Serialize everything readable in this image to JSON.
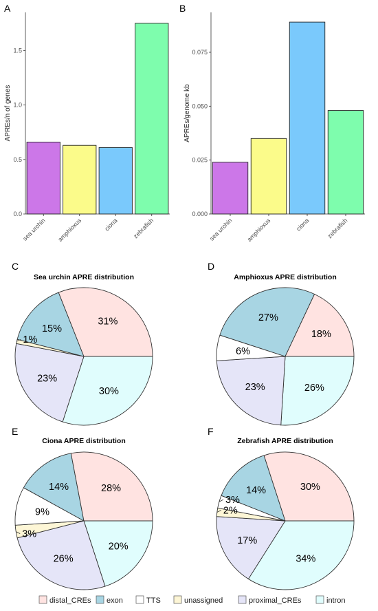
{
  "colors": {
    "distal_CREs": "#ffe3e1",
    "exon": "#a8d5e3",
    "TTS": "#ffffff",
    "unassigned": "#fdf6d6",
    "proximal_CREs": "#e5e5f8",
    "intron": "#e0fdfd",
    "sea urchin": "#cc77e8",
    "amphioxus": "#fbfb8a",
    "ciona": "#7ac9fc",
    "zebrafish": "#7efdad"
  },
  "chart_data": [
    {
      "panel": "A",
      "type": "bar",
      "title": "",
      "xlabel": "",
      "ylabel": "APREs/n of genes",
      "categories": [
        "sea urchin",
        "amphioxus",
        "ciona",
        "zebrafish"
      ],
      "values": [
        0.66,
        0.63,
        0.61,
        1.75
      ],
      "ylim": [
        0,
        1.85
      ],
      "yticks": [
        0.0,
        0.5,
        1.0,
        1.5
      ],
      "ytick_labels": [
        "0.0",
        "0.5",
        "1.0",
        "1.5"
      ],
      "grid": false
    },
    {
      "panel": "B",
      "type": "bar",
      "title": "",
      "xlabel": "",
      "ylabel": "APREs/genome kb",
      "categories": [
        "sea urchin",
        "amphioxus",
        "ciona",
        "zebrafish"
      ],
      "values": [
        0.024,
        0.035,
        0.089,
        0.048
      ],
      "ylim": [
        0,
        0.0935
      ],
      "yticks": [
        0.0,
        0.025,
        0.05,
        0.075
      ],
      "ytick_labels": [
        "0.000",
        "0.025",
        "0.050",
        "0.075"
      ],
      "grid": false
    },
    {
      "panel": "C",
      "type": "pie",
      "title": "Sea urchin APRE distribution",
      "slices": [
        {
          "category": "distal_CREs",
          "value": 31,
          "label": "31%"
        },
        {
          "category": "exon",
          "value": 15,
          "label": "15%"
        },
        {
          "category": "TTS",
          "value": 0,
          "label": ""
        },
        {
          "category": "unassigned",
          "value": 1,
          "label": "1%"
        },
        {
          "category": "proximal_CREs",
          "value": 23,
          "label": "23%"
        },
        {
          "category": "intron",
          "value": 30,
          "label": "30%"
        }
      ]
    },
    {
      "panel": "D",
      "type": "pie",
      "title": "Amphioxus APRE distribution",
      "slices": [
        {
          "category": "distal_CREs",
          "value": 18,
          "label": "18%"
        },
        {
          "category": "exon",
          "value": 27,
          "label": "27%"
        },
        {
          "category": "TTS",
          "value": 6,
          "label": "6%"
        },
        {
          "category": "unassigned",
          "value": 0,
          "label": ""
        },
        {
          "category": "proximal_CREs",
          "value": 23,
          "label": "23%"
        },
        {
          "category": "intron",
          "value": 26,
          "label": "26%"
        }
      ]
    },
    {
      "panel": "E",
      "type": "pie",
      "title": "Ciona APRE distribution",
      "slices": [
        {
          "category": "distal_CREs",
          "value": 28,
          "label": "28%"
        },
        {
          "category": "exon",
          "value": 14,
          "label": "14%"
        },
        {
          "category": "TTS",
          "value": 9,
          "label": "9%"
        },
        {
          "category": "unassigned",
          "value": 3,
          "label": "3%"
        },
        {
          "category": "proximal_CREs",
          "value": 26,
          "label": "26%"
        },
        {
          "category": "intron",
          "value": 20,
          "label": "20%"
        }
      ]
    },
    {
      "panel": "F",
      "type": "pie",
      "title": "Zebrafish APRE distribution",
      "slices": [
        {
          "category": "distal_CREs",
          "value": 30,
          "label": "30%"
        },
        {
          "category": "exon",
          "value": 14,
          "label": "14%"
        },
        {
          "category": "TTS",
          "value": 3,
          "label": "3%"
        },
        {
          "category": "unassigned",
          "value": 2,
          "label": "2%"
        },
        {
          "category": "proximal_CREs",
          "value": 17,
          "label": "17%"
        },
        {
          "category": "intron",
          "value": 34,
          "label": "34%"
        }
      ]
    }
  ],
  "legend": {
    "placement": "bottom",
    "items": [
      "distal_CREs",
      "exon",
      "TTS",
      "unassigned",
      "proximal_CREs",
      "intron"
    ]
  }
}
